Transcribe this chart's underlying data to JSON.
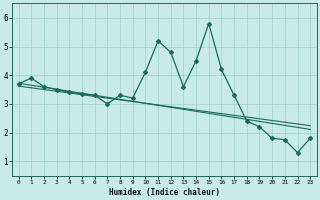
{
  "xlabel": "Humidex (Indice chaleur)",
  "x": [
    0,
    1,
    2,
    3,
    4,
    5,
    6,
    7,
    8,
    9,
    10,
    11,
    12,
    13,
    14,
    15,
    16,
    17,
    18,
    19,
    20,
    21,
    22,
    23
  ],
  "y_main": [
    3.7,
    3.9,
    3.6,
    3.5,
    3.4,
    3.35,
    3.3,
    3.0,
    3.3,
    3.2,
    4.1,
    5.2,
    4.8,
    3.6,
    4.5,
    5.8,
    4.2,
    3.3,
    2.4,
    2.2,
    1.8,
    1.75,
    1.3,
    1.8
  ],
  "y_line1": [
    3.72,
    3.65,
    3.58,
    3.51,
    3.44,
    3.37,
    3.3,
    3.23,
    3.16,
    3.09,
    3.02,
    2.95,
    2.88,
    2.81,
    2.74,
    2.67,
    2.6,
    2.53,
    2.46,
    2.39,
    2.32,
    2.25,
    2.18,
    2.11
  ],
  "y_line2": [
    3.62,
    3.56,
    3.5,
    3.44,
    3.38,
    3.32,
    3.26,
    3.2,
    3.14,
    3.08,
    3.02,
    2.96,
    2.9,
    2.84,
    2.78,
    2.72,
    2.66,
    2.6,
    2.54,
    2.48,
    2.42,
    2.36,
    2.3,
    2.24
  ],
  "color": "#1a6b5a",
  "bg_color": "#c8eae8",
  "grid_color": "#9dcfcb",
  "xlim": [
    -0.5,
    23.5
  ],
  "ylim": [
    0.5,
    6.5
  ],
  "yticks": [
    1,
    2,
    3,
    4,
    5,
    6
  ],
  "xticks": [
    0,
    1,
    2,
    3,
    4,
    5,
    6,
    7,
    8,
    9,
    10,
    11,
    12,
    13,
    14,
    15,
    16,
    17,
    18,
    19,
    20,
    21,
    22,
    23
  ]
}
